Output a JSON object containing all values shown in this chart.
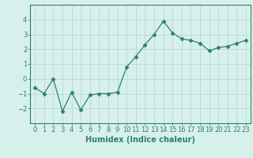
{
  "x": [
    0,
    1,
    2,
    3,
    4,
    5,
    6,
    7,
    8,
    9,
    10,
    11,
    12,
    13,
    14,
    15,
    16,
    17,
    18,
    19,
    20,
    21,
    22,
    23
  ],
  "y": [
    -0.6,
    -1.0,
    0.0,
    -2.2,
    -0.9,
    -2.1,
    -1.1,
    -1.0,
    -1.0,
    -0.9,
    0.8,
    1.5,
    2.3,
    3.0,
    3.9,
    3.1,
    2.7,
    2.6,
    2.4,
    1.9,
    2.1,
    2.2,
    2.4,
    2.6
  ],
  "line_color": "#2d7f72",
  "marker": "D",
  "marker_size": 2.5,
  "bg_color": "#d8f0ec",
  "grid_color": "#b8d8d0",
  "xlabel": "Humidex (Indice chaleur)",
  "xlabel_fontsize": 7,
  "tick_fontsize": 6,
  "ylim": [
    -3,
    5
  ],
  "xlim": [
    -0.5,
    23.5
  ],
  "yticks": [
    -2,
    -1,
    0,
    1,
    2,
    3,
    4
  ],
  "xticks": [
    0,
    1,
    2,
    3,
    4,
    5,
    6,
    7,
    8,
    9,
    10,
    11,
    12,
    13,
    14,
    15,
    16,
    17,
    18,
    19,
    20,
    21,
    22,
    23
  ]
}
